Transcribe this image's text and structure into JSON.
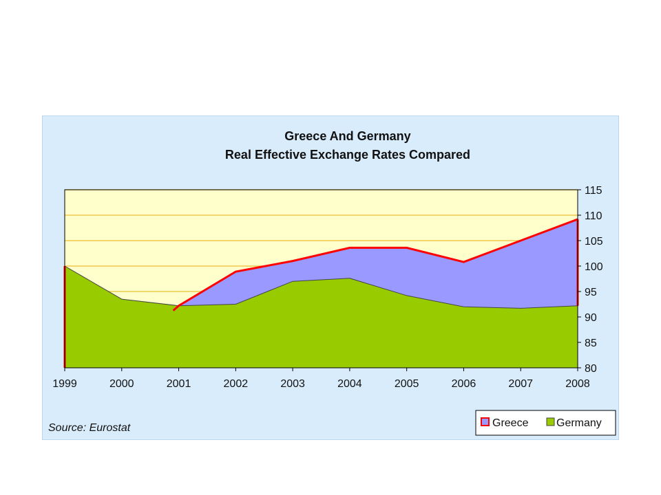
{
  "chart_data": {
    "type": "area",
    "title": "Greece And Germany",
    "subtitle": "Real Effective Exchange Rates Compared",
    "source": "Source: Eurostat",
    "x": [
      "1999",
      "2000",
      "2001",
      "2002",
      "2003",
      "2004",
      "2005",
      "2006",
      "2007",
      "2008"
    ],
    "ylim": [
      80,
      115
    ],
    "yticks": [
      80,
      85,
      90,
      95,
      100,
      105,
      110,
      115
    ],
    "y_axis_side": "right",
    "grid": true,
    "legend_position": "bottom-right",
    "series": [
      {
        "name": "Greece",
        "fill": "#9999ff",
        "line": "#ff0000",
        "values": [
          100,
          null,
          92.2,
          98.9,
          101.0,
          103.6,
          103.6,
          100.8,
          105.0,
          109.2
        ]
      },
      {
        "name": "Germany",
        "fill": "#99cc00",
        "values": [
          100,
          93.5,
          92.2,
          92.5,
          97.0,
          97.6,
          94.2,
          92.0,
          91.7,
          92.2
        ]
      }
    ],
    "colors": {
      "plot_background": "#ffffcc",
      "gridline": "#f2c94c",
      "frame_background": "#d9ecfb"
    }
  }
}
